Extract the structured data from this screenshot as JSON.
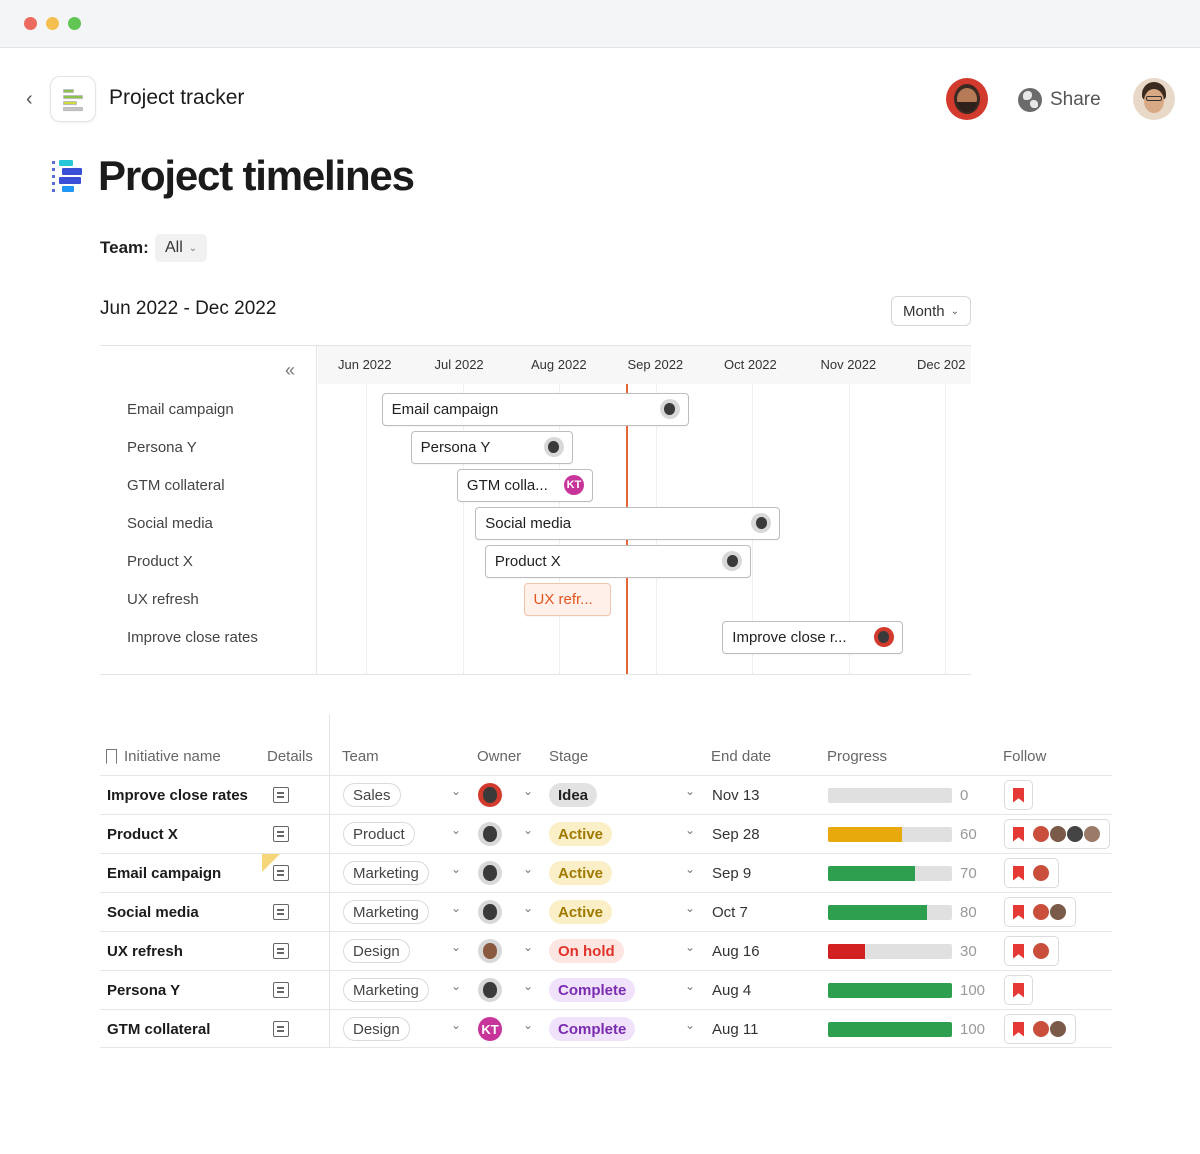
{
  "header": {
    "app_title": "Project tracker",
    "share_label": "Share"
  },
  "page": {
    "title": "Project timelines",
    "team_label": "Team:",
    "team_value": "All",
    "range": "Jun 2022 - Dec 2022",
    "view_mode": "Month"
  },
  "timeline": {
    "months": [
      "Jun 2022",
      "Jul 2022",
      "Aug 2022",
      "Sep 2022",
      "Oct 2022",
      "Nov 2022",
      "Dec 202"
    ],
    "rows": [
      {
        "label": "Email campaign",
        "bar_label": "Email campaign",
        "status": "active",
        "start_month": 0.67,
        "end_month": 3.85
      },
      {
        "label": "Persona Y",
        "bar_label": "Persona Y",
        "status": "complete",
        "start_month": 0.97,
        "end_month": 2.65
      },
      {
        "label": "GTM collateral",
        "bar_label": "GTM colla...",
        "status": "complete",
        "start_month": 1.45,
        "end_month": 2.86
      },
      {
        "label": "Social media",
        "bar_label": "Social media",
        "status": "active",
        "start_month": 1.64,
        "end_month": 4.8
      },
      {
        "label": "Product X",
        "bar_label": "Product X",
        "status": "active",
        "start_month": 1.74,
        "end_month": 4.5
      },
      {
        "label": "UX refresh",
        "bar_label": "UX refr...",
        "status": "hold",
        "start_month": 2.14,
        "end_month": 3.05
      },
      {
        "label": "Improve close rates",
        "bar_label": "Improve close r...",
        "status": "idea",
        "start_month": 4.2,
        "end_month": 6.07
      }
    ],
    "today_month": 3.2,
    "owner_initials": "KT"
  },
  "table": {
    "headers": {
      "name": "Initiative name",
      "details": "Details",
      "team": "Team",
      "owner": "Owner",
      "stage": "Stage",
      "end_date": "End date",
      "progress": "Progress",
      "follow": "Follow"
    },
    "rows": [
      {
        "name": "Improve close rates",
        "team": "Sales",
        "owner": "red",
        "stage": "Idea",
        "stage_kind": "idea",
        "end_date": "Nov 13",
        "progress": 0,
        "followers": 0
      },
      {
        "name": "Product X",
        "team": "Product",
        "owner": "gray",
        "stage": "Active",
        "stage_kind": "active",
        "end_date": "Sep 28",
        "progress": 60,
        "followers": 4
      },
      {
        "name": "Email campaign",
        "team": "Marketing",
        "owner": "gray",
        "stage": "Active",
        "stage_kind": "active",
        "end_date": "Sep 9",
        "progress": 70,
        "followers": 1
      },
      {
        "name": "Social media",
        "team": "Marketing",
        "owner": "gray",
        "stage": "Active",
        "stage_kind": "active",
        "end_date": "Oct 7",
        "progress": 80,
        "followers": 2
      },
      {
        "name": "UX refresh",
        "team": "Design",
        "owner": "brown",
        "stage": "On hold",
        "stage_kind": "hold",
        "end_date": "Aug 16",
        "progress": 30,
        "followers": 1
      },
      {
        "name": "Persona Y",
        "team": "Marketing",
        "owner": "gray",
        "stage": "Complete",
        "stage_kind": "complete",
        "end_date": "Aug 4",
        "progress": 100,
        "followers": 0
      },
      {
        "name": "GTM collateral",
        "team": "Design",
        "owner": "KT",
        "stage": "Complete",
        "stage_kind": "complete",
        "end_date": "Aug 11",
        "progress": 100,
        "followers": 2
      }
    ]
  },
  "colors": {
    "today_line": "#e5673a",
    "progress_green": "#2e9e4f",
    "progress_yellow": "#e8a90c",
    "progress_red": "#d32020",
    "follow_red": "#e53935",
    "kt_avatar": "#c7359a"
  }
}
